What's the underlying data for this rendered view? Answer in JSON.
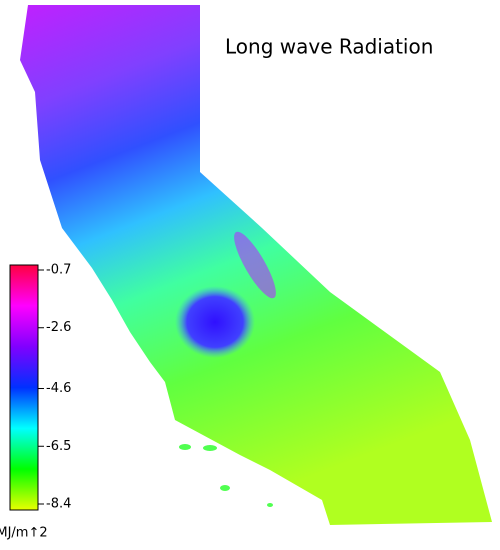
{
  "title": "Long wave Radiation",
  "colorbar": {
    "lim": [
      -8.4,
      -0.7
    ],
    "ticks": [
      -0.7,
      -2.6,
      -4.6,
      -6.5,
      -8.4
    ],
    "unit": "MJ/m↑2",
    "colors": [
      "#e8ff00",
      "#00ff00",
      "#00ffff",
      "#0030ff",
      "#8000ff",
      "#ff00ff",
      "#ff0040"
    ]
  }
}
